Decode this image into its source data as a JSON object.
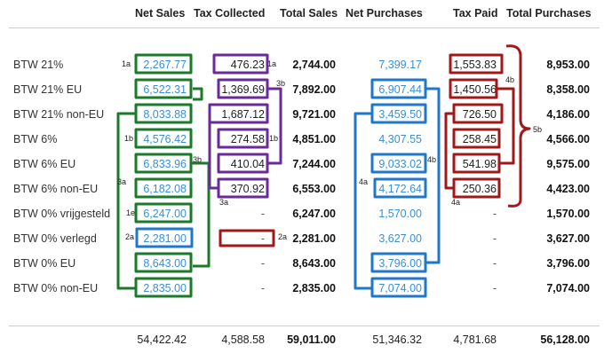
{
  "headers": {
    "net_sales": "Net Sales",
    "tax_collected": "Tax Collected",
    "total_sales": "Total Sales",
    "net_purchases": "Net Purchases",
    "tax_paid": "Tax Paid",
    "total_purchases": "Total Purchases"
  },
  "rows": [
    {
      "label": "BTW 21%",
      "net_sales": "2,267.77",
      "tax_collected": "476.23",
      "total_sales": "2,744.00",
      "net_purchases": "7,399.17",
      "tax_paid": "1,553.83",
      "total_purchases": "8,953.00"
    },
    {
      "label": "BTW 21% EU",
      "net_sales": "6,522.31",
      "tax_collected": "1,369.69",
      "total_sales": "7,892.00",
      "net_purchases": "6,907.44",
      "tax_paid": "1,450.56",
      "total_purchases": "8,358.00"
    },
    {
      "label": "BTW 21% non-EU",
      "net_sales": "8,033.88",
      "tax_collected": "1,687.12",
      "total_sales": "9,721.00",
      "net_purchases": "3,459.50",
      "tax_paid": "726.50",
      "total_purchases": "4,186.00"
    },
    {
      "label": "BTW 6%",
      "net_sales": "4,576.42",
      "tax_collected": "274.58",
      "total_sales": "4,851.00",
      "net_purchases": "4,307.55",
      "tax_paid": "258.45",
      "total_purchases": "4,566.00"
    },
    {
      "label": "BTW 6% EU",
      "net_sales": "6,833.96",
      "tax_collected": "410.04",
      "total_sales": "7,244.00",
      "net_purchases": "9,033.02",
      "tax_paid": "541.98",
      "total_purchases": "9,575.00"
    },
    {
      "label": "BTW 6% non-EU",
      "net_sales": "6,182.08",
      "tax_collected": "370.92",
      "total_sales": "6,553.00",
      "net_purchases": "4,172.64",
      "tax_paid": "250.36",
      "total_purchases": "4,423.00"
    },
    {
      "label": "BTW 0% vrijgesteld",
      "net_sales": "6,247.00",
      "tax_collected": "-",
      "total_sales": "6,247.00",
      "net_purchases": "1,570.00",
      "tax_paid": "-",
      "total_purchases": "1,570.00"
    },
    {
      "label": "BTW 0% verlegd",
      "net_sales": "2,281.00",
      "tax_collected": "-",
      "total_sales": "2,281.00",
      "net_purchases": "3,627.00",
      "tax_paid": "-",
      "total_purchases": "3,627.00"
    },
    {
      "label": "BTW 0% EU",
      "net_sales": "8,643.00",
      "tax_collected": "-",
      "total_sales": "8,643.00",
      "net_purchases": "3,796.00",
      "tax_paid": "-",
      "total_purchases": "3,796.00"
    },
    {
      "label": "BTW 0% non-EU",
      "net_sales": "2,835.00",
      "tax_collected": "-",
      "total_sales": "2,835.00",
      "net_purchases": "7,074.00",
      "tax_paid": "-",
      "total_purchases": "7,074.00"
    }
  ],
  "totals": {
    "net_sales": "54,422.42",
    "tax_collected": "4,588.58",
    "total_sales": "59,011.00",
    "net_purchases": "51,346.32",
    "tax_paid": "4,781.68",
    "total_purchases": "56,128.00"
  },
  "annotations": {
    "a1a_left": "1a",
    "a1a_right": "1a",
    "a1b_left": "1b",
    "a1b_right": "1b",
    "a1e": "1e",
    "a2a_left": "2a",
    "a2a_right": "2a",
    "a3a_left": "3a",
    "a3a_bottom": "3a",
    "a3b_top": "3b",
    "a3b_mid": "3b",
    "a4a_left": "4a",
    "a4a_bottom": "4a",
    "a4b_mid": "4b",
    "a4b_top": "4b",
    "a5b": "5b"
  },
  "annotation_colors": {
    "green": "#1a7a2a",
    "purple": "#6a2a9a",
    "blue": "#1f77c8",
    "red": "#a01818"
  }
}
